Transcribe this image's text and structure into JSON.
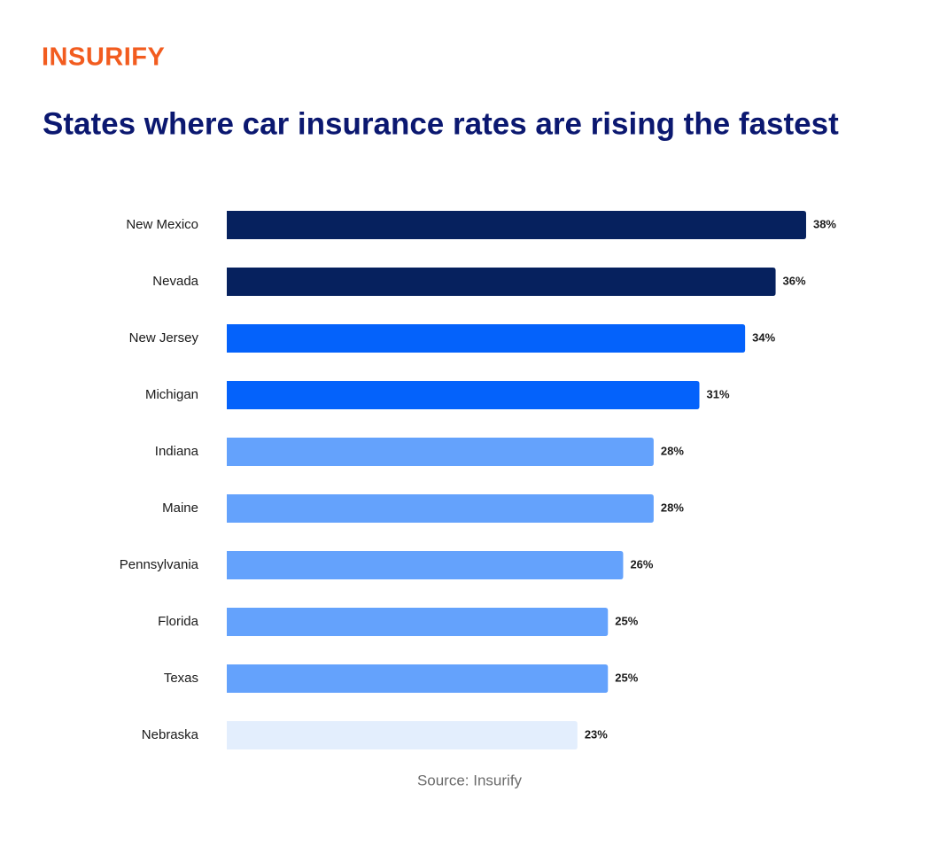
{
  "logo": "INSURIFY",
  "chart_data": {
    "type": "bar",
    "orientation": "horizontal",
    "title": "States where car insurance rates are rising the fastest",
    "categories": [
      "New Mexico",
      "Nevada",
      "New Jersey",
      "Michigan",
      "Indiana",
      "Maine",
      "Pennsylvania",
      "Florida",
      "Texas",
      "Nebraska"
    ],
    "values": [
      38,
      36,
      34,
      31,
      28,
      28,
      26,
      25,
      25,
      23
    ],
    "value_labels": [
      "38%",
      "36%",
      "34%",
      "31%",
      "28%",
      "28%",
      "26%",
      "25%",
      "25%",
      "23%"
    ],
    "colors": [
      "#06215e",
      "#06215e",
      "#0462fb",
      "#0462fb",
      "#64a2fc",
      "#64a2fc",
      "#64a2fc",
      "#64a2fc",
      "#64a2fc",
      "#e3eefd"
    ],
    "source": "Source: Insurify"
  }
}
